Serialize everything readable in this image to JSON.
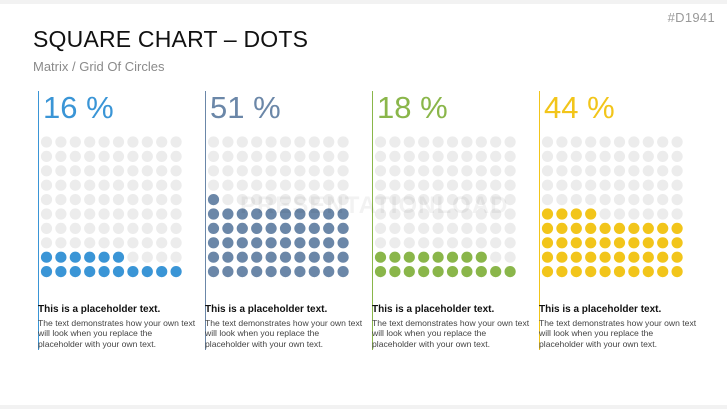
{
  "slide_id": "#D1941",
  "title": "SQUARE CHART – DOTS",
  "subtitle": "Matrix / Grid Of Circles",
  "watermark": "PRESENTATIONLOAD",
  "empty_dot_color": "#ececec",
  "chart_data": {
    "type": "dot-matrix",
    "grid": {
      "rows": 10,
      "cols": 10
    },
    "panels": [
      {
        "label": "16 %",
        "value": 16,
        "color": "#3a95d6",
        "caption_title": "This is a placeholder text.",
        "caption_body": "The text demonstrates how your own text will look when you replace the placeholder with your own text."
      },
      {
        "label": "51 %",
        "value": 51,
        "color": "#6b87a8",
        "caption_title": "This is a placeholder text.",
        "caption_body": "The text demonstrates how your own text will look when you replace the placeholder with your own text."
      },
      {
        "label": "18 %",
        "value": 18,
        "color": "#8ab64a",
        "caption_title": "This is a placeholder text.",
        "caption_body": "The text demonstrates how your own text will look when you replace the placeholder with your own text."
      },
      {
        "label": "44 %",
        "value": 44,
        "color": "#f2c51a",
        "caption_title": "This is a placeholder text.",
        "caption_body": "The text demonstrates how your own text will look when you replace the placeholder with your own text."
      }
    ]
  }
}
